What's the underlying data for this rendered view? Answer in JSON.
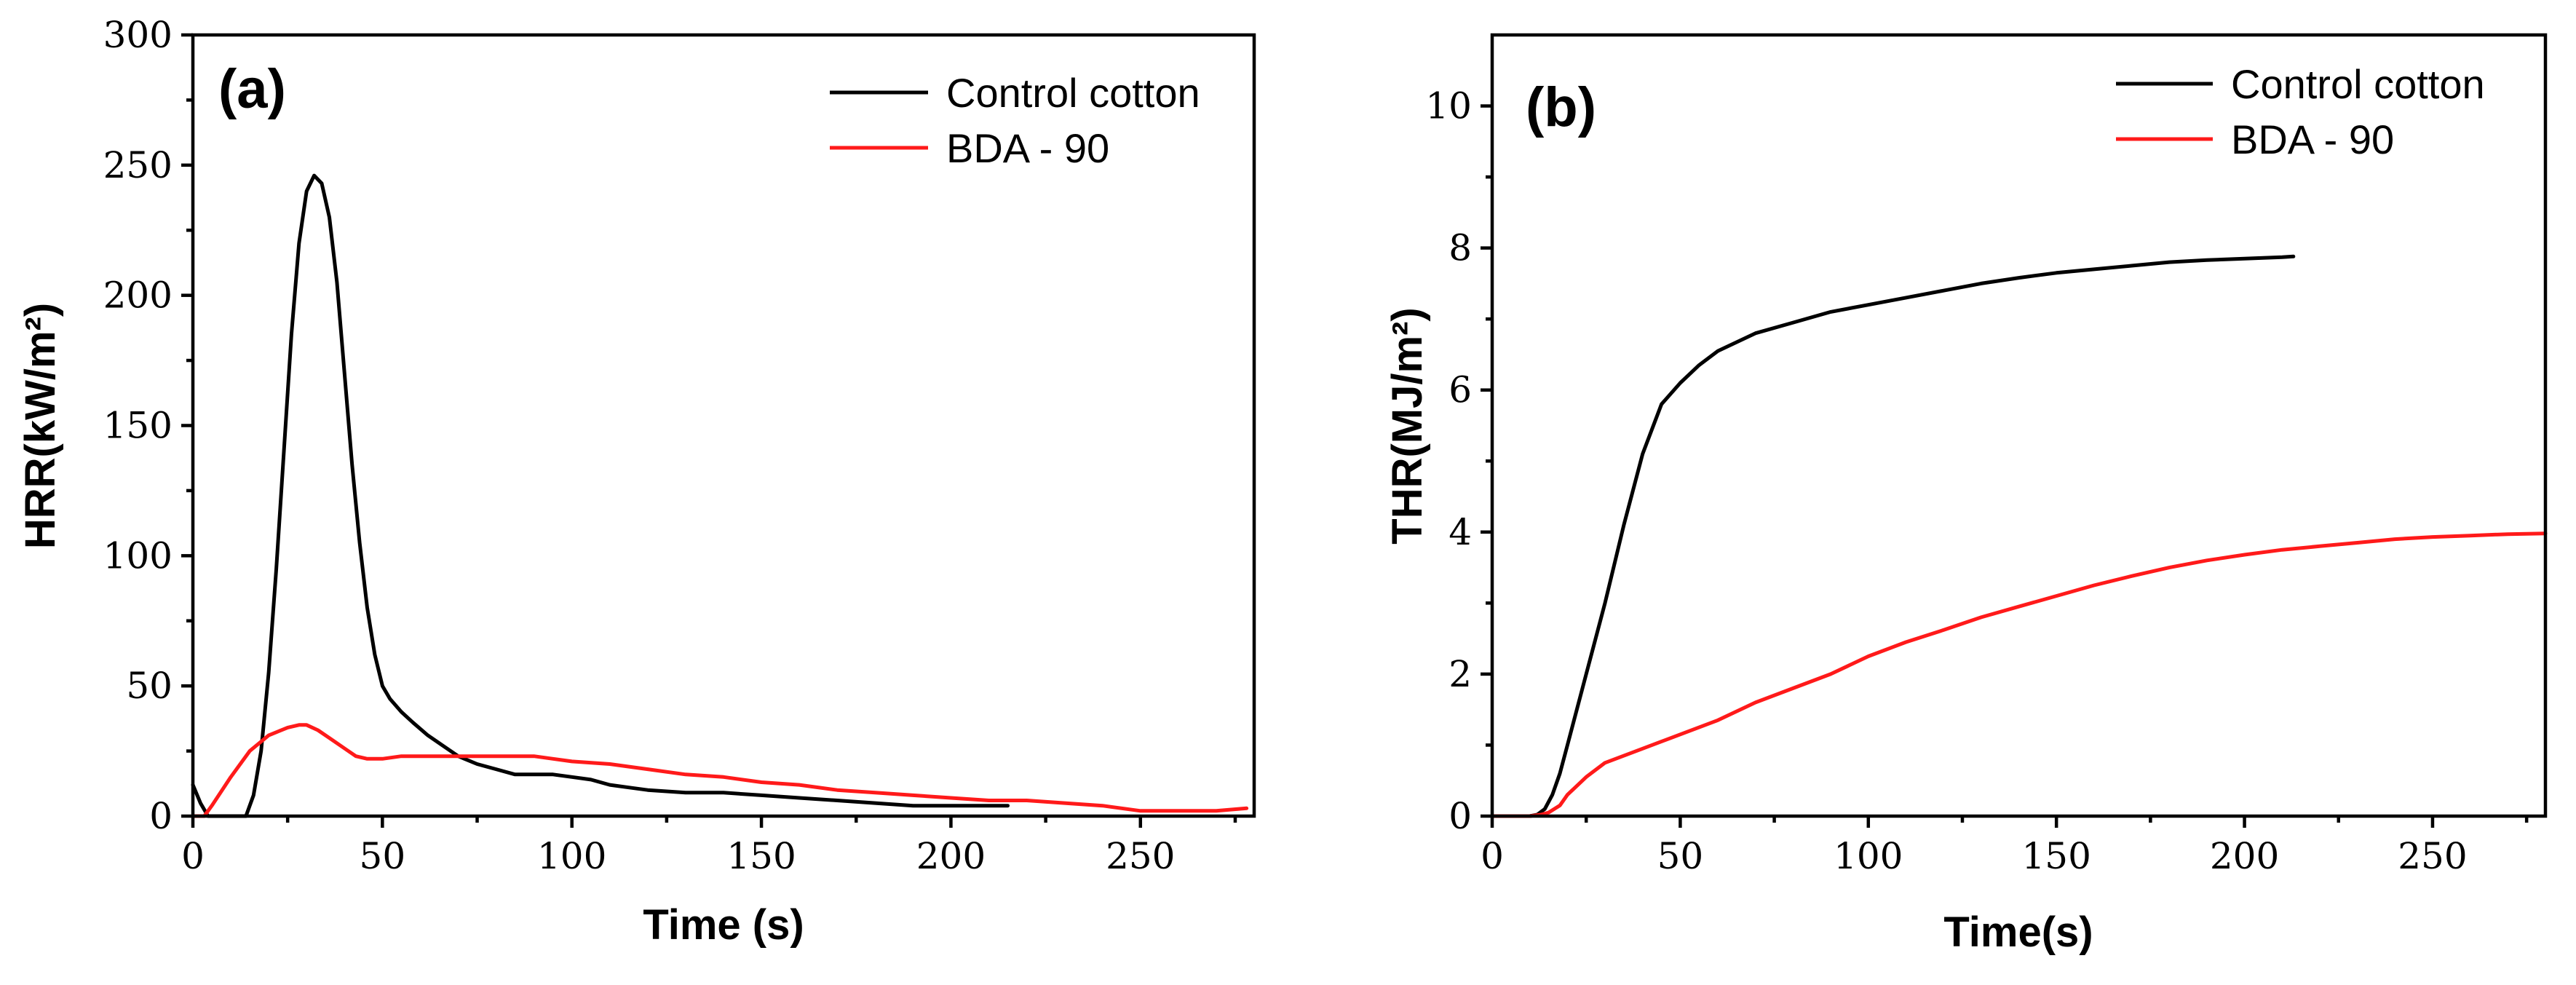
{
  "chart_data": [
    {
      "type": "line",
      "panel_label": "(a)",
      "xlabel": "Time (s)",
      "ylabel": "HRR(kW/m²)",
      "xlim": [
        0,
        280
      ],
      "ylim": [
        0,
        300
      ],
      "xticks": [
        0,
        50,
        100,
        150,
        200,
        250
      ],
      "yticks": [
        0,
        50,
        100,
        150,
        200,
        250,
        300
      ],
      "legend_position": "top-right",
      "series": [
        {
          "name": "Control cotton",
          "color": "#000000",
          "x": [
            0,
            2,
            4,
            10,
            14,
            16,
            18,
            20,
            22,
            24,
            26,
            28,
            30,
            32,
            34,
            36,
            38,
            40,
            42,
            44,
            46,
            48,
            50,
            52,
            55,
            58,
            62,
            66,
            70,
            75,
            80,
            85,
            90,
            95,
            100,
            105,
            110,
            115,
            120,
            130,
            140,
            150,
            160,
            170,
            180,
            190,
            200,
            210,
            215
          ],
          "y": [
            12,
            5,
            0,
            0,
            0,
            8,
            25,
            55,
            95,
            140,
            185,
            220,
            240,
            246,
            243,
            230,
            205,
            170,
            135,
            105,
            80,
            62,
            50,
            45,
            40,
            36,
            31,
            27,
            23,
            20,
            18,
            16,
            16,
            16,
            15,
            14,
            12,
            11,
            10,
            9,
            9,
            8,
            7,
            6,
            5,
            4,
            4,
            4,
            4
          ]
        },
        {
          "name": "BDA - 90",
          "color": "#ff1a1a",
          "x": [
            0,
            3,
            5,
            10,
            15,
            20,
            25,
            28,
            30,
            33,
            36,
            40,
            43,
            46,
            50,
            55,
            60,
            70,
            80,
            90,
            95,
            100,
            110,
            120,
            130,
            140,
            150,
            160,
            170,
            180,
            190,
            200,
            210,
            220,
            230,
            240,
            250,
            260,
            270,
            278
          ],
          "y": [
            0,
            0,
            4,
            15,
            25,
            31,
            34,
            35,
            35,
            33,
            30,
            26,
            23,
            22,
            22,
            23,
            23,
            23,
            23,
            23,
            22,
            21,
            20,
            18,
            16,
            15,
            13,
            12,
            10,
            9,
            8,
            7,
            6,
            6,
            5,
            4,
            2,
            2,
            2,
            3
          ]
        }
      ]
    },
    {
      "type": "line",
      "panel_label": "(b)",
      "xlabel": "Time(s)",
      "ylabel": "THR(MJ/m²)",
      "xlim": [
        0,
        280
      ],
      "ylim": [
        0,
        11
      ],
      "xticks": [
        0,
        50,
        100,
        150,
        200,
        250
      ],
      "yticks": [
        0,
        2,
        4,
        6,
        8,
        10
      ],
      "legend_position": "top-right",
      "series": [
        {
          "name": "Control cotton",
          "color": "#000000",
          "x": [
            0,
            10,
            12,
            14,
            16,
            18,
            20,
            25,
            30,
            35,
            40,
            45,
            50,
            55,
            60,
            70,
            80,
            90,
            100,
            110,
            120,
            130,
            140,
            150,
            160,
            170,
            180,
            190,
            200,
            210,
            213
          ],
          "y": [
            0,
            0,
            0.02,
            0.1,
            0.3,
            0.6,
            1.0,
            2.0,
            3.0,
            4.1,
            5.1,
            5.8,
            6.1,
            6.35,
            6.55,
            6.8,
            6.95,
            7.1,
            7.2,
            7.3,
            7.4,
            7.5,
            7.58,
            7.65,
            7.7,
            7.75,
            7.8,
            7.83,
            7.85,
            7.87,
            7.88
          ]
        },
        {
          "name": "BDA - 90",
          "color": "#ff1a1a",
          "x": [
            0,
            10,
            13,
            15,
            18,
            20,
            25,
            30,
            40,
            50,
            60,
            70,
            80,
            90,
            100,
            110,
            120,
            130,
            140,
            150,
            160,
            170,
            180,
            190,
            200,
            210,
            220,
            230,
            240,
            250,
            260,
            270,
            280
          ],
          "y": [
            0,
            0,
            0.02,
            0.05,
            0.15,
            0.3,
            0.55,
            0.75,
            0.95,
            1.15,
            1.35,
            1.6,
            1.8,
            2.0,
            2.25,
            2.45,
            2.62,
            2.8,
            2.95,
            3.1,
            3.25,
            3.38,
            3.5,
            3.6,
            3.68,
            3.75,
            3.8,
            3.85,
            3.9,
            3.93,
            3.95,
            3.97,
            3.98
          ]
        }
      ]
    }
  ]
}
